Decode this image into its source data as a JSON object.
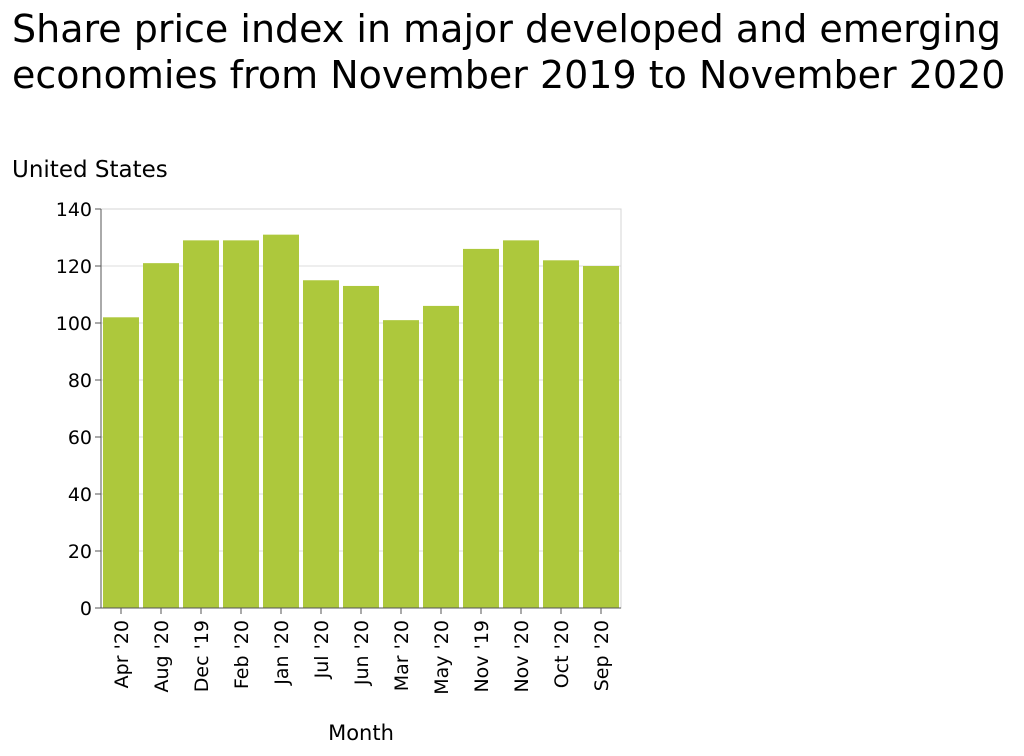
{
  "chart_data": {
    "type": "bar",
    "title": "Share price index in major developed and emerging economies from November 2019 to November 2020",
    "subtitle": "United States",
    "xlabel": "Month",
    "ylabel": "",
    "categories": [
      "Apr '20",
      "Aug '20",
      "Dec '19",
      "Feb '20",
      "Jan '20",
      "Jul '20",
      "Jun '20",
      "Mar '20",
      "May '20",
      "Nov '19",
      "Nov '20",
      "Oct '20",
      "Sep '20"
    ],
    "values": [
      102,
      121,
      129,
      129,
      131,
      115,
      113,
      101,
      106,
      126,
      129,
      122,
      120
    ],
    "ylim": [
      0,
      140
    ],
    "yticks": [
      0,
      20,
      40,
      60,
      80,
      100,
      120,
      140
    ],
    "grid": true,
    "legend": "none",
    "bar_color": "#adc83c",
    "grid_color": "#dddddd",
    "axis_color": "#555555"
  }
}
